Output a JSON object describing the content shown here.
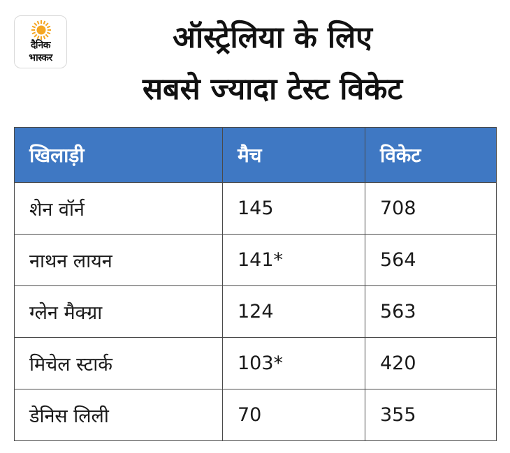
{
  "logo": {
    "line1": "दैनिक",
    "line2": "भास्कर",
    "sun_color": "#f5a623"
  },
  "title": {
    "line1": "ऑस्ट्रेलिया के लिए",
    "line2": "सबसे ज्यादा टेस्ट विकेट"
  },
  "colors": {
    "header_bg": "#3f78c3",
    "header_text": "#ffffff",
    "border": "#4a4a4a"
  },
  "chart_data": {
    "type": "table",
    "columns": [
      "खिलाड़ी",
      "मैच",
      "विकेट"
    ],
    "rows": [
      [
        "शेन वॉर्न",
        "145",
        "708"
      ],
      [
        "नाथन लायन",
        "141*",
        "564"
      ],
      [
        "ग्लेन मैक्ग्रा",
        "124",
        "563"
      ],
      [
        "मिचेल स्टार्क",
        "103*",
        "420"
      ],
      [
        "डेनिस लिली",
        "70",
        "355"
      ]
    ]
  }
}
